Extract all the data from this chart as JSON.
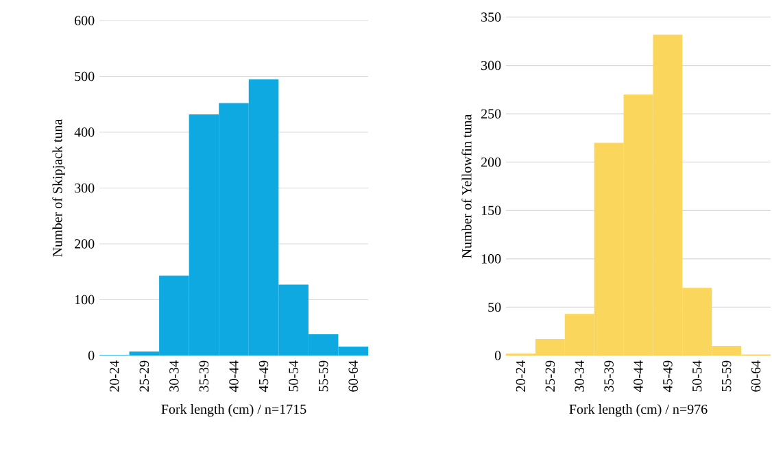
{
  "chart_data": [
    {
      "type": "bar",
      "categories": [
        "20-24",
        "25-29",
        "30-34",
        "35-39",
        "40-44",
        "45-49",
        "50-54",
        "55-59",
        "60-64"
      ],
      "values": [
        1,
        7,
        143,
        432,
        452,
        495,
        127,
        38,
        16
      ],
      "color": "#0ea9e0",
      "ylim": [
        0,
        600
      ],
      "yticks": [
        0,
        100,
        200,
        300,
        400,
        500,
        600
      ],
      "grid": "y",
      "xlabel": "Fork length (cm) / n=1715",
      "ylabel": "Number of  Skipjack tuna"
    },
    {
      "type": "bar",
      "categories": [
        "20-24",
        "25-29",
        "30-34",
        "35-39",
        "40-44",
        "45-49",
        "50-54",
        "55-59",
        "60-64"
      ],
      "values": [
        2,
        17,
        43,
        220,
        270,
        332,
        70,
        10,
        1
      ],
      "color": "#fad65c",
      "ylim": [
        0,
        350
      ],
      "yticks": [
        0,
        50,
        100,
        150,
        200,
        250,
        300,
        350
      ],
      "grid": "y",
      "xlabel": "Fork length (cm) / n=976",
      "ylabel": "Number of  Yellowfin tuna"
    }
  ]
}
